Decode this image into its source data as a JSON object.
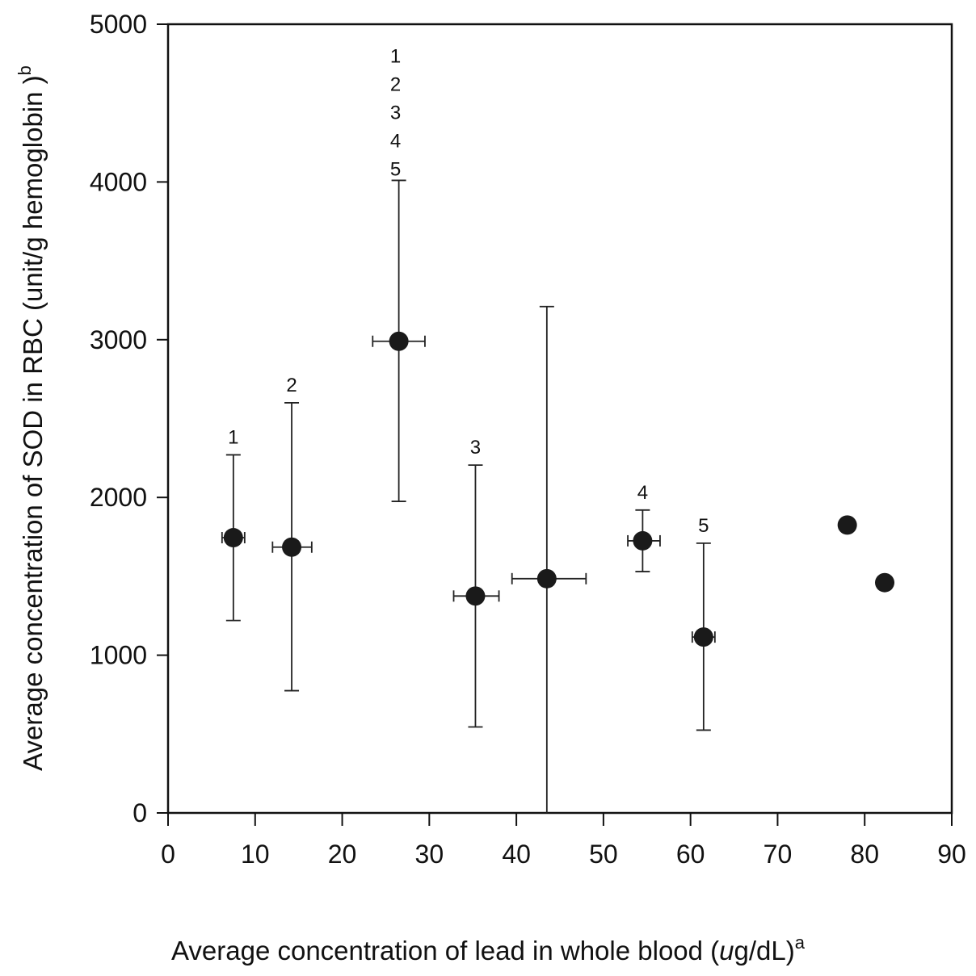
{
  "chart_data": {
    "type": "scatter",
    "title": "",
    "xlabel": {
      "text_before": "Average concentration of lead in whole blood (",
      "unit_italic": "u",
      "text_after": "g/dL)",
      "superscript": "a"
    },
    "ylabel": {
      "text": "Average concentration of SOD in RBC (unit/g hemoglobin )",
      "superscript": "b"
    },
    "xlim": [
      0,
      90
    ],
    "ylim": [
      0,
      5000
    ],
    "x_ticks": [
      0,
      10,
      20,
      30,
      40,
      50,
      60,
      70,
      80,
      90
    ],
    "y_ticks": [
      0,
      1000,
      2000,
      3000,
      4000,
      5000
    ],
    "grid": false,
    "marker_color": "#1a1a1a",
    "points": [
      {
        "x": 7.5,
        "y": 1745,
        "y_err": [
          1220,
          2270
        ],
        "x_err": [
          6.2,
          8.8
        ],
        "label": "1"
      },
      {
        "x": 14.2,
        "y": 1685,
        "y_err": [
          775,
          2600
        ],
        "x_err": [
          12.0,
          16.5
        ],
        "label": "2"
      },
      {
        "x": 26.5,
        "y": 2990,
        "y_err": [
          1975,
          4010
        ],
        "x_err": [
          23.5,
          29.5
        ],
        "labels_stacked": [
          "1",
          "2",
          "3",
          "4",
          "5"
        ]
      },
      {
        "x": 35.3,
        "y": 1375,
        "y_err": [
          545,
          2205
        ],
        "x_err": [
          32.8,
          38.0
        ],
        "label": "3"
      },
      {
        "x": 43.5,
        "y": 1485,
        "y_err": [
          0,
          3210
        ],
        "x_err": [
          39.5,
          48.0
        ]
      },
      {
        "x": 54.5,
        "y": 1725,
        "y_err": [
          1530,
          1920
        ],
        "x_err": [
          52.8,
          56.5
        ],
        "label": "4"
      },
      {
        "x": 61.5,
        "y": 1115,
        "y_err": [
          525,
          1710
        ],
        "x_err": [
          60.2,
          62.8
        ],
        "label": "5"
      },
      {
        "x": 78.0,
        "y": 1825
      },
      {
        "x": 82.3,
        "y": 1460
      }
    ]
  }
}
